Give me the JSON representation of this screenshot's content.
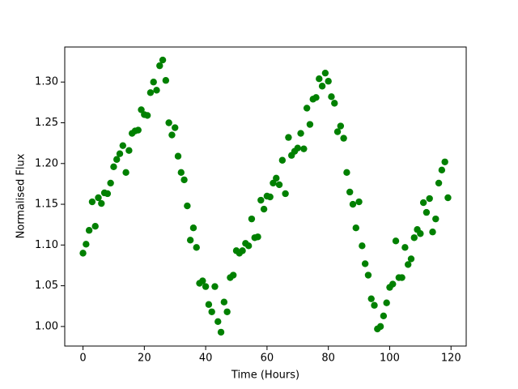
{
  "chart_data": {
    "type": "scatter",
    "xlabel": "Time (Hours)",
    "ylabel": "Normalised Flux",
    "color": "#008000",
    "x": [
      0,
      1,
      2,
      3,
      4,
      5,
      6,
      7,
      8,
      9,
      10,
      11,
      12,
      13,
      14,
      15,
      16,
      17,
      18,
      19,
      20,
      21,
      22,
      23,
      24,
      25,
      26,
      27,
      28,
      29,
      30,
      31,
      32,
      33,
      34,
      35,
      36,
      37,
      38,
      39,
      40,
      41,
      42,
      43,
      44,
      45,
      46,
      47,
      48,
      49,
      50,
      51,
      52,
      53,
      54,
      55,
      56,
      57,
      58,
      59,
      60,
      61,
      62,
      63,
      64,
      65,
      66,
      67,
      68,
      69,
      70,
      71,
      72,
      73,
      74,
      75,
      76,
      77,
      78,
      79,
      80,
      81,
      82,
      83,
      84,
      85,
      86,
      87,
      88,
      89,
      90,
      91,
      92,
      93,
      94,
      95,
      96,
      97,
      98,
      99,
      100,
      101,
      102,
      103,
      104,
      105,
      106,
      107,
      108,
      109,
      110,
      111,
      112,
      113,
      114,
      115,
      116,
      117,
      118,
      119
    ],
    "values": [
      1.09,
      1.101,
      1.118,
      1.153,
      1.123,
      1.158,
      1.151,
      1.164,
      1.163,
      1.176,
      1.196,
      1.205,
      1.212,
      1.222,
      1.189,
      1.216,
      1.237,
      1.24,
      1.241,
      1.266,
      1.26,
      1.259,
      1.287,
      1.3,
      1.29,
      1.32,
      1.327,
      1.302,
      1.25,
      1.235,
      1.244,
      1.209,
      1.189,
      1.18,
      1.148,
      1.106,
      1.121,
      1.097,
      1.053,
      1.056,
      1.049,
      1.027,
      1.018,
      1.049,
      1.006,
      0.993,
      1.03,
      1.018,
      1.06,
      1.063,
      1.093,
      1.09,
      1.093,
      1.102,
      1.099,
      1.132,
      1.109,
      1.11,
      1.155,
      1.144,
      1.16,
      1.159,
      1.176,
      1.182,
      1.174,
      1.204,
      1.163,
      1.232,
      1.21,
      1.215,
      1.219,
      1.237,
      1.218,
      1.268,
      1.248,
      1.279,
      1.281,
      1.304,
      1.295,
      1.311,
      1.301,
      1.282,
      1.274,
      1.239,
      1.246,
      1.231,
      1.189,
      1.165,
      1.15,
      1.121,
      1.153,
      1.099,
      1.077,
      1.063,
      1.034,
      1.026,
      0.997,
      1.0,
      1.013,
      1.029,
      1.048,
      1.052,
      1.105,
      1.06,
      1.06,
      1.097,
      1.076,
      1.083,
      1.109,
      1.119,
      1.114,
      1.152,
      1.14,
      1.157,
      1.116,
      1.132,
      1.176,
      1.192,
      1.202,
      1.158
    ],
    "xlim": [
      -5.95,
      124.95
    ],
    "xticks": [
      0,
      20,
      40,
      60,
      80,
      100,
      120
    ],
    "ylim": [
      0.976,
      1.343
    ],
    "yticks": [
      {
        "value": 1.0,
        "label": "1.00"
      },
      {
        "value": 1.05,
        "label": "1.05"
      },
      {
        "value": 1.1,
        "label": "1.10"
      },
      {
        "value": 1.15,
        "label": "1.15"
      },
      {
        "value": 1.2,
        "label": "1.20"
      },
      {
        "value": 1.25,
        "label": "1.25"
      },
      {
        "value": 1.3,
        "label": "1.30"
      }
    ]
  }
}
